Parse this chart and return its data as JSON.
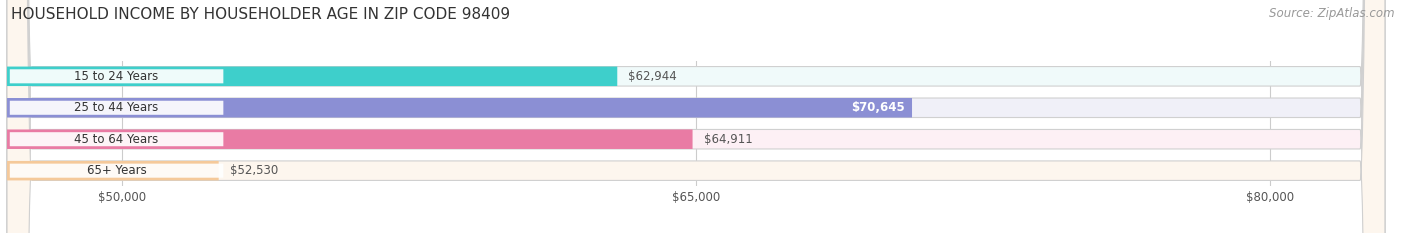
{
  "title": "HOUSEHOLD INCOME BY HOUSEHOLDER AGE IN ZIP CODE 98409",
  "source": "Source: ZipAtlas.com",
  "categories": [
    "15 to 24 Years",
    "25 to 44 Years",
    "45 to 64 Years",
    "65+ Years"
  ],
  "values": [
    62944,
    70645,
    64911,
    52530
  ],
  "bar_colors": [
    "#3ecfcb",
    "#8b8fd4",
    "#e97ba4",
    "#f5c99a"
  ],
  "bg_colors": [
    "#f0fafa",
    "#f0f0f8",
    "#fdf0f5",
    "#fdf6ee"
  ],
  "value_labels": [
    "$62,944",
    "$70,645",
    "$64,911",
    "$52,530"
  ],
  "label_inside": [
    false,
    true,
    false,
    false
  ],
  "xmin": 47000,
  "xmax": 83000,
  "xticks": [
    50000,
    65000,
    80000
  ],
  "xtick_labels": [
    "$50,000",
    "$65,000",
    "$80,000"
  ],
  "title_fontsize": 11,
  "source_fontsize": 8.5,
  "bar_height": 0.62,
  "figsize": [
    14.06,
    2.33
  ],
  "dpi": 100
}
